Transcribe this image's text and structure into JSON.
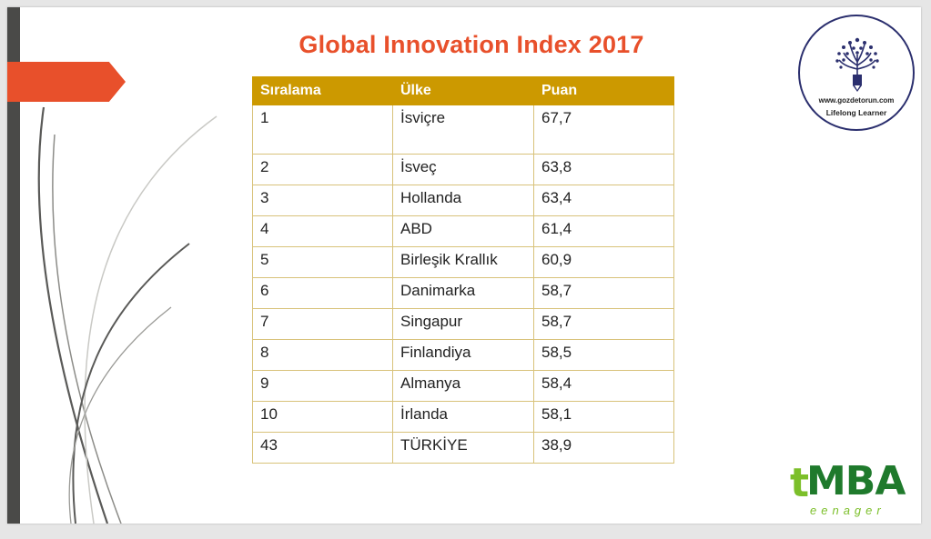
{
  "title": "Global Innovation Index 2017",
  "table": {
    "headers": [
      "Sıralama",
      "Ülke",
      "Puan"
    ],
    "rows": [
      [
        "1",
        "İsviçre",
        "67,7"
      ],
      [
        "2",
        "İsveç",
        "63,8"
      ],
      [
        "3",
        "Hollanda",
        "63,4"
      ],
      [
        "4",
        "ABD",
        "61,4"
      ],
      [
        "5",
        "Birleşik Krallık",
        "60,9"
      ],
      [
        "6",
        "Danimarka",
        "58,7"
      ],
      [
        "7",
        "Singapur",
        "58,7"
      ],
      [
        "8",
        "Finlandiya",
        "58,5"
      ],
      [
        "9",
        "Almanya",
        "58,4"
      ],
      [
        "10",
        "İrlanda",
        "58,1"
      ],
      [
        "43",
        "TÜRKİYE",
        "38,9"
      ]
    ]
  },
  "logo": {
    "url": "www.gozdetorun.com",
    "tagline": "Lifelong Learner",
    "icon": "tree-pencil-icon"
  },
  "brand": {
    "letter": "t",
    "name": "MBA",
    "sub": "eenager"
  },
  "colors": {
    "title": "#e8502b",
    "header_bg": "#cc9900",
    "accent_arrow": "#e8502b",
    "left_bar": "#4a4a48",
    "brand_green": "#1f7a2c",
    "brand_light_green": "#7cbf2a"
  }
}
